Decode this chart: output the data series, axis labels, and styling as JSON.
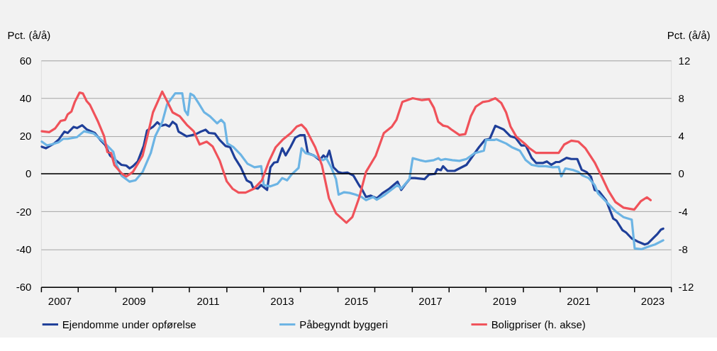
{
  "chart_data": {
    "type": "line",
    "ylabel": "Pct. (å/å)",
    "y2label": "Pct. (å/å)",
    "xlim": [
      2007,
      2024
    ],
    "xticks": [
      {
        "value": 2007,
        "label": null
      },
      {
        "value": 2007.5,
        "label": "2007"
      },
      {
        "value": 2008,
        "label": null
      },
      {
        "value": 2009,
        "label": null
      },
      {
        "value": 2009.5,
        "label": "2009"
      },
      {
        "value": 2010,
        "label": null
      },
      {
        "value": 2011,
        "label": null
      },
      {
        "value": 2011.5,
        "label": "2011"
      },
      {
        "value": 2012,
        "label": null
      },
      {
        "value": 2013,
        "label": null
      },
      {
        "value": 2013.5,
        "label": "2013"
      },
      {
        "value": 2014,
        "label": null
      },
      {
        "value": 2015,
        "label": null
      },
      {
        "value": 2015.5,
        "label": "2015"
      },
      {
        "value": 2016,
        "label": null
      },
      {
        "value": 2017,
        "label": null
      },
      {
        "value": 2017.5,
        "label": "2017"
      },
      {
        "value": 2018,
        "label": null
      },
      {
        "value": 2019,
        "label": null
      },
      {
        "value": 2019.5,
        "label": "2019"
      },
      {
        "value": 2020,
        "label": null
      },
      {
        "value": 2021,
        "label": null
      },
      {
        "value": 2021.5,
        "label": "2021"
      },
      {
        "value": 2022,
        "label": null
      },
      {
        "value": 2023,
        "label": null
      },
      {
        "value": 2023.5,
        "label": "2023"
      },
      {
        "value": 2024,
        "label": null
      }
    ],
    "ylim": [
      -60,
      60
    ],
    "yticks": [
      -60,
      -40,
      -20,
      0,
      20,
      40,
      60
    ],
    "y2lim": [
      -12,
      12
    ],
    "y2ticks": [
      -12,
      -8,
      -4,
      0,
      4,
      8,
      12
    ],
    "grid": "y",
    "legend": "bottom",
    "marker": "none",
    "line_style": "solid",
    "ref_lines": [
      {
        "axis": "y",
        "value": 0,
        "color": "#000000"
      }
    ],
    "series": [
      {
        "name": "Ejendomme under opførelse",
        "color": "#1f3f99",
        "x": [
          2007.02,
          2007.13,
          2007.35,
          2007.47,
          2007.63,
          2007.72,
          2007.88,
          2007.97,
          2008.11,
          2008.23,
          2008.45,
          2008.6,
          2008.73,
          2008.86,
          2009.01,
          2009.17,
          2009.3,
          2009.39,
          2009.48,
          2009.61,
          2009.77,
          2009.86,
          2010.02,
          2010.14,
          2010.24,
          2010.36,
          2010.46,
          2010.55,
          2010.65,
          2010.71,
          2010.93,
          2011.06,
          2011.18,
          2011.31,
          2011.44,
          2011.53,
          2011.69,
          2011.82,
          2011.98,
          2012.1,
          2012.23,
          2012.39,
          2012.55,
          2012.67,
          2012.72,
          2012.85,
          2012.94,
          2013.1,
          2013.19,
          2013.29,
          2013.38,
          2013.51,
          2013.6,
          2013.73,
          2013.86,
          2013.99,
          2014.11,
          2014.2,
          2014.36,
          2014.52,
          2014.62,
          2014.7,
          2014.78,
          2014.89,
          2015.02,
          2015.14,
          2015.27,
          2015.43,
          2015.58,
          2015.65,
          2015.77,
          2015.9,
          2016.06,
          2016.21,
          2016.4,
          2016.62,
          2016.72,
          2016.84,
          2016.97,
          2017.09,
          2017.35,
          2017.47,
          2017.63,
          2017.69,
          2017.79,
          2017.85,
          2017.97,
          2018.16,
          2018.29,
          2018.48,
          2018.64,
          2018.82,
          2018.98,
          2019.11,
          2019.26,
          2019.48,
          2019.67,
          2019.8,
          2019.96,
          2020.08,
          2020.24,
          2020.36,
          2020.55,
          2020.65,
          2020.77,
          2020.9,
          2020.99,
          2021.18,
          2021.31,
          2021.47,
          2021.59,
          2021.72,
          2021.84,
          2021.94,
          2022.06,
          2022.25,
          2022.44,
          2022.53,
          2022.69,
          2022.79,
          2022.94,
          2023.13,
          2023.29,
          2023.38,
          2023.51,
          2023.64,
          2023.73,
          2023.79
        ],
        "values": [
          14.3,
          13.5,
          16,
          17.9,
          22.3,
          21.6,
          24.8,
          24.2,
          25.7,
          23.5,
          21.6,
          17.9,
          15.3,
          9.7,
          7.2,
          4.7,
          4.3,
          2.8,
          4.0,
          6.5,
          14.7,
          22.9,
          24.8,
          27.3,
          25.4,
          26,
          25,
          27.5,
          26,
          22.3,
          19.8,
          20.4,
          21,
          22.3,
          23.3,
          21.6,
          21.3,
          17.9,
          14.7,
          14.1,
          8.4,
          3.4,
          -3.5,
          -4.8,
          -7.3,
          -7.9,
          -6,
          -8.6,
          3.4,
          5.9,
          6.2,
          13.5,
          9.7,
          14.1,
          19.1,
          20.4,
          20.4,
          10.9,
          9.7,
          7.2,
          9.7,
          8.2,
          12.2,
          3.4,
          0.9,
          0.3,
          0.6,
          -1,
          -6,
          -7.9,
          -12.3,
          -11.6,
          -13,
          -10.4,
          -7.9,
          -4.2,
          -8.6,
          -5.4,
          -2.3,
          -2.3,
          -2.9,
          -0.4,
          -0.1,
          2.4,
          1.9,
          4.0,
          1.5,
          1.5,
          2.8,
          4.7,
          9.1,
          14.1,
          17.9,
          18.5,
          25.4,
          23.5,
          19.8,
          19.1,
          15,
          15,
          8.4,
          5.7,
          5.7,
          6.5,
          4.7,
          6.2,
          6.2,
          8.4,
          7.8,
          7.8,
          2.1,
          0.9,
          -1.6,
          -8.6,
          -9.4,
          -14.2,
          -23.7,
          -24.9,
          -29.9,
          -31.2,
          -34.3,
          -36.2,
          -37.5,
          -36.9,
          -34.3,
          -31.8,
          -29.6,
          -29.1
        ]
      },
      {
        "name": "Påbegyndt byggeri",
        "color": "#6cb4e4",
        "x": [
          2007.02,
          2007.16,
          2007.31,
          2007.47,
          2007.6,
          2007.72,
          2007.97,
          2008.16,
          2008.42,
          2008.67,
          2008.95,
          2009.04,
          2009.17,
          2009.39,
          2009.55,
          2009.74,
          2009.96,
          2010.08,
          2010.27,
          2010.4,
          2010.62,
          2010.81,
          2010.88,
          2010.96,
          2011.03,
          2011.12,
          2011.25,
          2011.4,
          2011.56,
          2011.75,
          2011.86,
          2011.95,
          2012.03,
          2012.19,
          2012.38,
          2012.57,
          2012.76,
          2012.94,
          2013.01,
          2013.19,
          2013.38,
          2013.51,
          2013.64,
          2013.76,
          2013.95,
          2014.03,
          2014.14,
          2014.33,
          2014.48,
          2014.61,
          2014.7,
          2014.83,
          2014.96,
          2015.03,
          2015.18,
          2015.33,
          2015.49,
          2015.65,
          2015.77,
          2015.96,
          2016.06,
          2016.28,
          2016.62,
          2016.72,
          2016.94,
          2017.03,
          2017.22,
          2017.38,
          2017.6,
          2017.72,
          2017.79,
          2017.91,
          2018.1,
          2018.29,
          2018.48,
          2018.7,
          2018.95,
          2019.01,
          2019.23,
          2019.29,
          2019.55,
          2019.7,
          2019.92,
          2020.08,
          2020.24,
          2020.43,
          2020.62,
          2020.81,
          2020.97,
          2021.04,
          2021.15,
          2021.37,
          2021.5,
          2021.62,
          2021.78,
          2021.94,
          2022.03,
          2022.19,
          2022.38,
          2022.5,
          2022.72,
          2022.94,
          2023.02,
          2023.2,
          2023.38,
          2023.57,
          2023.79
        ],
        "values": [
          17,
          15,
          15.7,
          16.6,
          18.5,
          18.5,
          19.4,
          22.5,
          21.3,
          17.2,
          11.6,
          4.7,
          -1,
          -4.2,
          -3.5,
          0.9,
          10.9,
          19.8,
          27.3,
          36.7,
          42.6,
          42.6,
          33.6,
          31.1,
          42.4,
          41.4,
          37.4,
          32.6,
          30.4,
          26.7,
          28.6,
          26.7,
          16,
          14.1,
          10.3,
          5.3,
          3.4,
          4,
          -6,
          -6.7,
          -5.4,
          -2.3,
          -3.5,
          -0.4,
          3.1,
          13.5,
          10.9,
          9.9,
          8.4,
          7.2,
          8.2,
          3.4,
          -2.9,
          -11.1,
          -9.8,
          -10.2,
          -11.1,
          -12.3,
          -14,
          -12.3,
          -13.8,
          -11.1,
          -6,
          -7.9,
          -2.9,
          8.2,
          7.2,
          6.5,
          7.2,
          8.2,
          7.2,
          7.8,
          7.2,
          6.8,
          7.8,
          10.9,
          12.2,
          17.9,
          17.9,
          18.2,
          16,
          14.1,
          12.2,
          7.2,
          4.7,
          4,
          4,
          3.4,
          3.6,
          -1.4,
          2.8,
          1.9,
          0.9,
          -1,
          -2.3,
          -6,
          -10.4,
          -13.6,
          -17.4,
          -19.9,
          -23,
          -24.3,
          -39.6,
          -40,
          -38.7,
          -37.5,
          -35.3
        ]
      },
      {
        "name": "Boligpriser (h. akse)",
        "color": "#f0525a",
        "axis": "y2",
        "x": [
          2007.02,
          2007.22,
          2007.38,
          2007.53,
          2007.65,
          2007.72,
          2007.82,
          2007.91,
          2008.04,
          2008.13,
          2008.23,
          2008.32,
          2008.54,
          2008.7,
          2008.79,
          2008.89,
          2008.98,
          2009.17,
          2009.3,
          2009.48,
          2009.74,
          2009.86,
          2010.02,
          2010.27,
          2010.4,
          2010.55,
          2010.74,
          2010.93,
          2011.12,
          2011.28,
          2011.47,
          2011.63,
          2011.82,
          2012.01,
          2012.17,
          2012.33,
          2012.52,
          2012.74,
          2012.96,
          2013.15,
          2013.33,
          2013.52,
          2013.74,
          2013.9,
          2014.03,
          2014.15,
          2014.4,
          2014.58,
          2014.77,
          2014.96,
          2015.24,
          2015.4,
          2015.58,
          2015.77,
          2016.03,
          2016.25,
          2016.47,
          2016.59,
          2016.75,
          2017.03,
          2017.28,
          2017.47,
          2017.6,
          2017.72,
          2017.85,
          2017.97,
          2018.07,
          2018.29,
          2018.45,
          2018.6,
          2018.73,
          2018.92,
          2019.08,
          2019.26,
          2019.42,
          2019.55,
          2019.67,
          2019.83,
          2020.05,
          2020.18,
          2020.36,
          2020.55,
          2020.81,
          2020.97,
          2021.12,
          2021.31,
          2021.5,
          2021.69,
          2021.94,
          2022.13,
          2022.31,
          2022.5,
          2022.72,
          2023.01,
          2023.19,
          2023.35,
          2023.45
        ],
        "values": [
          4.5,
          4.4,
          4.8,
          5.6,
          5.7,
          6.3,
          6.6,
          7.6,
          8.6,
          8.5,
          7.7,
          7.3,
          5.5,
          4.0,
          2.3,
          2.2,
          0.9,
          0.05,
          -0.3,
          0.2,
          1.9,
          3.8,
          6.5,
          8.7,
          7.7,
          6.5,
          6.1,
          5.2,
          4.5,
          3.1,
          3.4,
          2.9,
          1.4,
          -0.8,
          -1.6,
          -2.0,
          -2.0,
          -1.6,
          -0.7,
          1.3,
          2.8,
          3.6,
          4.3,
          5.0,
          5.2,
          4.7,
          2.8,
          0.9,
          -2.6,
          -4.2,
          -5.2,
          -4.6,
          -2.6,
          0.2,
          1.9,
          4.3,
          5.0,
          5.7,
          7.6,
          8.0,
          7.8,
          7.9,
          7.0,
          5.5,
          5.1,
          5.0,
          4.7,
          4.1,
          4.2,
          6.1,
          7.1,
          7.6,
          7.7,
          8.0,
          7.5,
          6.5,
          5.0,
          3.9,
          3.2,
          2.7,
          2.2,
          2.2,
          2.2,
          2.2,
          3.1,
          3.5,
          3.4,
          2.7,
          1.2,
          -0.3,
          -1.8,
          -3.0,
          -3.6,
          -3.8,
          -2.9,
          -2.5,
          -2.8
        ]
      }
    ]
  }
}
